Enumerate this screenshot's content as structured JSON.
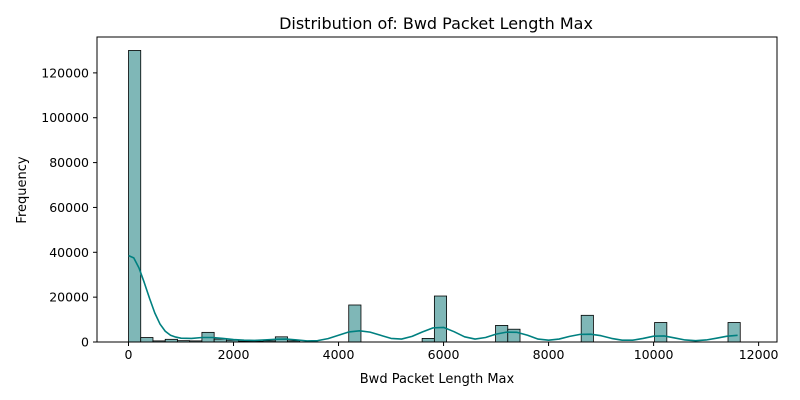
{
  "chart_data": {
    "type": "histogram",
    "title": "Distribution of: Bwd Packet Length Max",
    "xlabel": "Bwd Packet Length Max",
    "ylabel": "Frequency",
    "xlim": [
      -600,
      12350
    ],
    "ylim": [
      0,
      136000
    ],
    "x_ticks": [
      0,
      2000,
      4000,
      6000,
      8000,
      10000,
      12000
    ],
    "x_tick_labels": [
      "0",
      "2000",
      "4000",
      "6000",
      "8000",
      "10000",
      "12000"
    ],
    "y_ticks": [
      0,
      20000,
      40000,
      60000,
      80000,
      100000,
      120000
    ],
    "y_tick_labels": [
      "0",
      "20000",
      "40000",
      "60000",
      "80000",
      "100000",
      "120000"
    ],
    "bar_color": "#7fb7b7",
    "bar_edge_color": "#000000",
    "kde_color": "#008080",
    "bins": [
      {
        "x0": 0,
        "x1": 233,
        "count": 130000
      },
      {
        "x0": 233,
        "x1": 466,
        "count": 2000
      },
      {
        "x0": 466,
        "x1": 699,
        "count": 500
      },
      {
        "x0": 699,
        "x1": 932,
        "count": 1200
      },
      {
        "x0": 932,
        "x1": 1165,
        "count": 600
      },
      {
        "x0": 1165,
        "x1": 1398,
        "count": 500
      },
      {
        "x0": 1398,
        "x1": 1631,
        "count": 4300
      },
      {
        "x0": 1631,
        "x1": 1864,
        "count": 1300
      },
      {
        "x0": 1864,
        "x1": 2097,
        "count": 800
      },
      {
        "x0": 2097,
        "x1": 2330,
        "count": 400
      },
      {
        "x0": 2330,
        "x1": 2563,
        "count": 300
      },
      {
        "x0": 2563,
        "x1": 2796,
        "count": 500
      },
      {
        "x0": 2796,
        "x1": 3029,
        "count": 2300
      },
      {
        "x0": 3029,
        "x1": 3262,
        "count": 500
      },
      {
        "x0": 4194,
        "x1": 4427,
        "count": 16500
      },
      {
        "x0": 5592,
        "x1": 5825,
        "count": 1600
      },
      {
        "x0": 5825,
        "x1": 6058,
        "count": 20500
      },
      {
        "x0": 6990,
        "x1": 7223,
        "count": 7400
      },
      {
        "x0": 7223,
        "x1": 7456,
        "count": 5700
      },
      {
        "x0": 8621,
        "x1": 8854,
        "count": 11900
      },
      {
        "x0": 10019,
        "x1": 10252,
        "count": 8700
      },
      {
        "x0": 11417,
        "x1": 11650,
        "count": 8700
      }
    ],
    "kde": {
      "x": [
        0,
        100,
        200,
        300,
        400,
        500,
        600,
        700,
        800,
        900,
        1000,
        1200,
        1400,
        1600,
        1800,
        2000,
        2200,
        2400,
        2600,
        2800,
        3000,
        3200,
        3400,
        3600,
        3800,
        4000,
        4200,
        4400,
        4600,
        4800,
        5000,
        5200,
        5400,
        5600,
        5800,
        6000,
        6200,
        6400,
        6600,
        6800,
        7000,
        7200,
        7400,
        7600,
        7800,
        8000,
        8200,
        8400,
        8600,
        8800,
        9000,
        9200,
        9400,
        9600,
        9800,
        10000,
        10200,
        10400,
        10600,
        10800,
        11000,
        11200,
        11400,
        11600
      ],
      "y": [
        38500,
        37500,
        33000,
        26500,
        19500,
        13000,
        8000,
        4800,
        3000,
        2200,
        1700,
        1600,
        2000,
        2000,
        1600,
        1100,
        800,
        700,
        900,
        1200,
        1300,
        900,
        500,
        600,
        1500,
        3000,
        4500,
        5000,
        4400,
        3000,
        1600,
        1300,
        2500,
        4500,
        6300,
        6500,
        4600,
        2300,
        1300,
        2000,
        3500,
        4400,
        4300,
        3000,
        1300,
        800,
        1300,
        2500,
        3400,
        3500,
        2800,
        1600,
        800,
        800,
        1600,
        2600,
        2700,
        1800,
        900,
        600,
        900,
        1700,
        2600,
        3000
      ]
    }
  }
}
